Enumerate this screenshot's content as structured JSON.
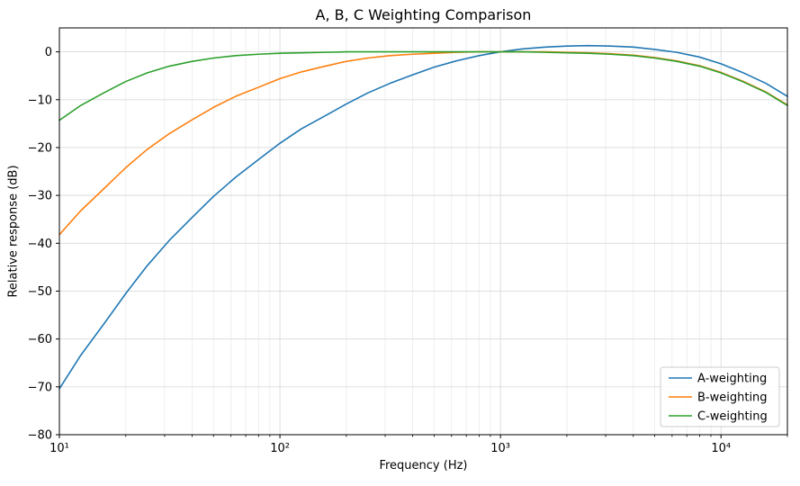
{
  "chart_data": {
    "type": "line",
    "title": "A, B, C Weighting Comparison",
    "xlabel": "Frequency (Hz)",
    "ylabel": "Relative response (dB)",
    "x_scale": "log",
    "xlim": [
      10,
      20000
    ],
    "ylim": [
      -80,
      5
    ],
    "grid": "both",
    "legend_position": "lower right",
    "background_color": "#ffffff",
    "major_grid_color": "#d9d9d9",
    "minor_grid_color": "#ebebeb",
    "x_ticks": [
      {
        "value": 10,
        "label": "10¹"
      },
      {
        "value": 100,
        "label": "10²"
      },
      {
        "value": 1000,
        "label": "10³"
      },
      {
        "value": 10000,
        "label": "10⁴"
      }
    ],
    "y_ticks": [
      {
        "value": 0,
        "label": "0"
      },
      {
        "value": -10,
        "label": "−10"
      },
      {
        "value": -20,
        "label": "−20"
      },
      {
        "value": -30,
        "label": "−30"
      },
      {
        "value": -40,
        "label": "−40"
      },
      {
        "value": -50,
        "label": "−50"
      },
      {
        "value": -60,
        "label": "−60"
      },
      {
        "value": -70,
        "label": "−70"
      },
      {
        "value": -80,
        "label": "−80"
      }
    ],
    "x": [
      10,
      12.5,
      16,
      20,
      25,
      31.5,
      40,
      50,
      63,
      80,
      100,
      125,
      160,
      200,
      250,
      315,
      400,
      500,
      630,
      800,
      1000,
      1250,
      1600,
      2000,
      2500,
      3150,
      4000,
      5000,
      6300,
      8000,
      10000,
      12500,
      16000,
      20000
    ],
    "series": [
      {
        "name": "A-weighting",
        "color": "#1f77b4",
        "values": [
          -70.4,
          -63.4,
          -56.7,
          -50.5,
          -44.7,
          -39.4,
          -34.6,
          -30.2,
          -26.2,
          -22.5,
          -19.1,
          -16.1,
          -13.4,
          -10.9,
          -8.6,
          -6.6,
          -4.8,
          -3.2,
          -1.9,
          -0.8,
          0.0,
          0.6,
          1.0,
          1.2,
          1.3,
          1.2,
          1.0,
          0.5,
          -0.1,
          -1.1,
          -2.5,
          -4.3,
          -6.6,
          -9.3
        ]
      },
      {
        "name": "B-weighting",
        "color": "#ff7f0e",
        "values": [
          -38.2,
          -33.2,
          -28.5,
          -24.2,
          -20.4,
          -17.1,
          -14.2,
          -11.6,
          -9.3,
          -7.4,
          -5.6,
          -4.2,
          -3.0,
          -2.0,
          -1.3,
          -0.8,
          -0.5,
          -0.3,
          -0.1,
          0.0,
          0.0,
          0.0,
          0.0,
          -0.1,
          -0.2,
          -0.4,
          -0.7,
          -1.2,
          -1.9,
          -2.9,
          -4.3,
          -6.1,
          -8.4,
          -11.1
        ]
      },
      {
        "name": "C-weighting",
        "color": "#2ca02c",
        "values": [
          -14.3,
          -11.2,
          -8.5,
          -6.2,
          -4.4,
          -3.0,
          -2.0,
          -1.3,
          -0.8,
          -0.5,
          -0.3,
          -0.2,
          -0.1,
          0.0,
          0.0,
          0.0,
          0.0,
          0.0,
          0.0,
          0.0,
          0.0,
          0.0,
          -0.1,
          -0.2,
          -0.3,
          -0.5,
          -0.8,
          -1.3,
          -2.0,
          -3.0,
          -4.4,
          -6.2,
          -8.5,
          -11.2
        ]
      }
    ]
  }
}
